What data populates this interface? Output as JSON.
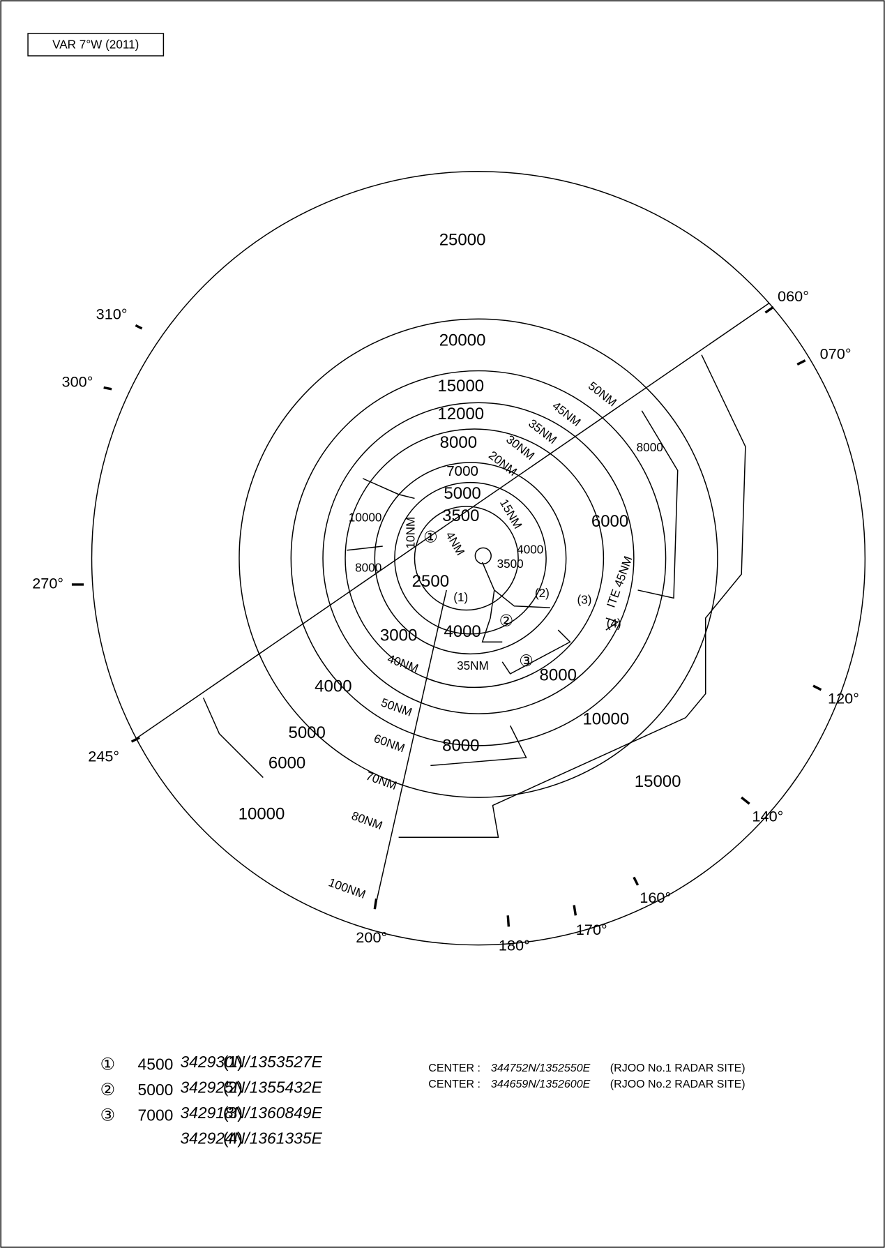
{
  "variation": "VAR 7°W (2011)",
  "altitudes": [
    "25000",
    "20000",
    "15000",
    "12000",
    "8000",
    "7000",
    "5000",
    "3500",
    "10000",
    "8000",
    "2500",
    "6000",
    "4000",
    "3500",
    "8000",
    "3000",
    "4000",
    "4000",
    "8000",
    "10000",
    "5000",
    "8000",
    "6000",
    "15000",
    "10000"
  ],
  "distances": [
    "50NM",
    "45NM",
    "35NM",
    "30NM",
    "20NM",
    "15NM",
    "10NM",
    "4NM",
    "ITE 45NM",
    "40NM",
    "35NM",
    "50NM",
    "60NM",
    "70NM",
    "80NM",
    "100NM"
  ],
  "area_marks": [
    "①",
    "②",
    "③"
  ],
  "point_marks": [
    "(1)",
    "(2)",
    "(3)",
    "(4)"
  ],
  "bearings": [
    "060°",
    "070°",
    "120°",
    "140°",
    "160°",
    "170°",
    "180°",
    "200°",
    "245°",
    "270°",
    "300°",
    "310°"
  ],
  "legend_areas": [
    {
      "mark": "①",
      "altitude": "4500"
    },
    {
      "mark": "②",
      "altitude": "5000"
    },
    {
      "mark": "③",
      "altitude": "7000"
    }
  ],
  "legend_points": [
    {
      "label": "(1)",
      "coord": "342930N/1353527E"
    },
    {
      "label": "(2)",
      "coord": "342925N/1355432E"
    },
    {
      "label": "(3)",
      "coord": "342918N/1360849E"
    },
    {
      "label": "(4)",
      "coord": "342924N/1361335E"
    }
  ],
  "centers": [
    {
      "label": "CENTER :",
      "coord": "344752N/1352550E",
      "site": "(RJOO No.1 RADAR SITE)"
    },
    {
      "label": "CENTER :",
      "coord": "344659N/1352600E",
      "site": "(RJOO No.2 RADAR SITE)"
    }
  ]
}
